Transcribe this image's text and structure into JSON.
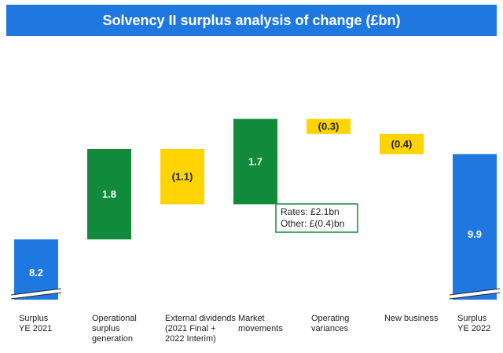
{
  "chart_data": {
    "type": "bar",
    "subtype": "waterfall",
    "title": "Solvency II surplus analysis of change (£bn)",
    "unit": "£bn",
    "categories": [
      "Surplus\nYE 2021",
      "Operational\nsurplus\ngeneration",
      "External dividends\n(2021 Final +\n2022 Interim)",
      "Market\nmovements",
      "Operating\nvariances",
      "New business",
      "Surplus\nYE 2022"
    ],
    "values": [
      8.2,
      1.8,
      -1.1,
      1.7,
      -0.3,
      -0.4,
      9.9
    ],
    "labels": [
      "8.2",
      "1.8",
      "(1.1)",
      "1.7",
      "(0.3)",
      "(0.4)",
      "9.9"
    ],
    "kinds": [
      "total",
      "increase",
      "decrease",
      "increase",
      "decrease",
      "decrease",
      "total"
    ],
    "colors": {
      "total": "#1f78e0",
      "increase": "#118a3c",
      "decrease": "#ffd400"
    },
    "axis_break": true,
    "annotation": {
      "category_index": 3,
      "lines": [
        "Rates: £2.1bn",
        "Other: £(0.4)bn"
      ],
      "border_color": "#118a3c"
    }
  }
}
